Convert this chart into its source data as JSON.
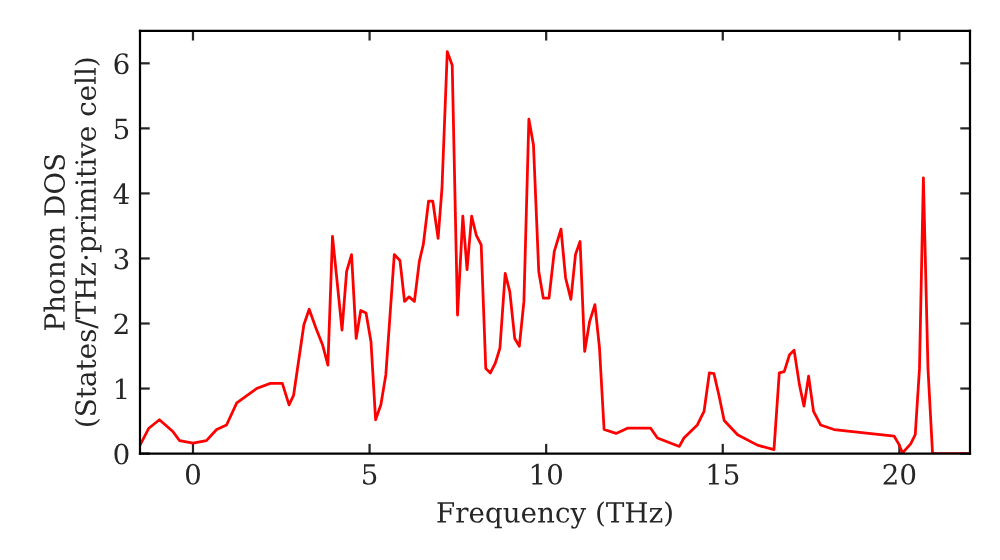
{
  "chart_data": {
    "type": "line",
    "xlabel": "Frequency (THz)",
    "ylabel": "Phonon DOS\n(States/THz·primitive cell)",
    "xlim": [
      -1.5,
      22
    ],
    "ylim": [
      0,
      6.5
    ],
    "xticks": [
      0,
      5,
      10,
      15,
      20
    ],
    "yticks": [
      0,
      1,
      2,
      3,
      4,
      5,
      6
    ],
    "grid": false,
    "legend": false,
    "marker": "none",
    "line_style": "solid",
    "series": [
      {
        "color": "#ff0000",
        "x": [
          -1.5,
          -1.25,
          -0.95,
          -0.57,
          -0.38,
          0,
          0.38,
          0.67,
          0.95,
          1.24,
          1.8,
          2.19,
          2.53,
          2.72,
          2.85,
          3.14,
          3.29,
          3.48,
          3.67,
          3.82,
          3.95,
          4.22,
          4.35,
          4.49,
          4.62,
          4.75,
          4.9,
          5.04,
          5.17,
          5.32,
          5.46,
          5.7,
          5.86,
          5.99,
          6.12,
          6.27,
          6.41,
          6.52,
          6.67,
          6.79,
          6.94,
          7.05,
          7.2,
          7.34,
          7.49,
          7.64,
          7.76,
          7.89,
          8.02,
          8.16,
          8.29,
          8.42,
          8.56,
          8.69,
          8.84,
          8.97,
          9.11,
          9.24,
          9.37,
          9.51,
          9.64,
          9.79,
          9.92,
          10.08,
          10.23,
          10.42,
          10.55,
          10.7,
          10.83,
          10.96,
          11.09,
          11.23,
          11.38,
          11.51,
          11.64,
          11.98,
          12.3,
          12.96,
          13.15,
          13.77,
          13.9,
          14.28,
          14.47,
          14.62,
          14.75,
          14.89,
          15.04,
          15.42,
          15.98,
          16.45,
          16.6,
          16.74,
          16.89,
          17.02,
          17.17,
          17.3,
          17.43,
          17.57,
          17.77,
          18.15,
          19.85,
          19.98,
          20.09,
          20.32,
          20.45,
          20.57,
          20.68,
          20.81,
          20.94,
          21.94
        ],
        "values": [
          0.13,
          0.39,
          0.52,
          0.34,
          0.2,
          0.16,
          0.2,
          0.37,
          0.44,
          0.78,
          1.0,
          1.08,
          1.08,
          0.75,
          0.9,
          1.98,
          2.22,
          1.93,
          1.67,
          1.36,
          3.34,
          1.9,
          2.8,
          3.06,
          1.77,
          2.2,
          2.16,
          1.72,
          0.52,
          0.75,
          1.21,
          3.06,
          2.97,
          2.34,
          2.41,
          2.34,
          2.96,
          3.21,
          3.88,
          3.88,
          3.31,
          4.08,
          6.18,
          5.97,
          2.13,
          3.65,
          2.83,
          3.65,
          3.36,
          3.21,
          1.31,
          1.24,
          1.39,
          1.62,
          2.77,
          2.49,
          1.77,
          1.65,
          2.34,
          5.14,
          4.75,
          2.8,
          2.39,
          2.39,
          3.11,
          3.45,
          2.7,
          2.37,
          3.06,
          3.26,
          1.57,
          2.03,
          2.29,
          1.62,
          0.37,
          0.31,
          0.39,
          0.39,
          0.24,
          0.11,
          0.24,
          0.44,
          0.65,
          1.24,
          1.23,
          0.9,
          0.51,
          0.29,
          0.13,
          0.06,
          1.24,
          1.26,
          1.52,
          1.59,
          1.06,
          0.73,
          1.19,
          0.65,
          0.44,
          0.37,
          0.27,
          0.15,
          0.01,
          0.15,
          0.29,
          1.31,
          4.24,
          1.31,
          0,
          0
        ]
      }
    ]
  }
}
